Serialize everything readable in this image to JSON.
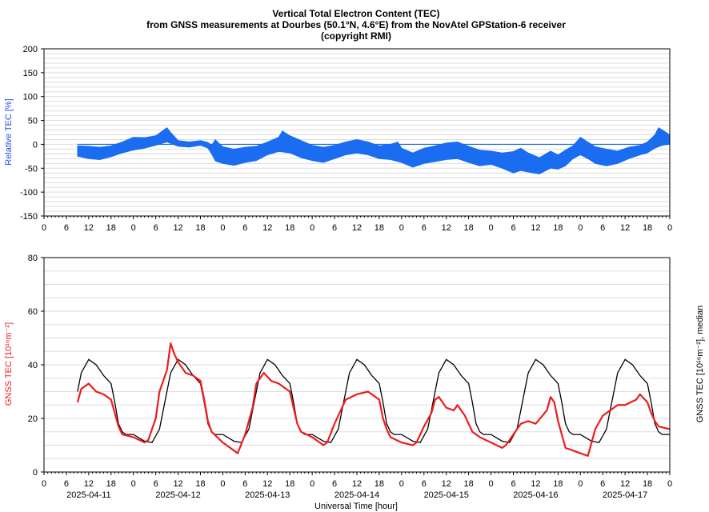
{
  "title_lines": [
    "Vertical Total Electron Content (TEC)",
    "from GNSS measurements at Dourbes (50.1°N, 4.6°E) from the NovAtel GPStation-6 receiver",
    "(copyright RMI)"
  ],
  "xlabel": "Universal Time [hour]",
  "colors": {
    "relative": "#1a6cf0",
    "tec": "#ee1c1c",
    "median": "#000000",
    "grid": "#dddddd",
    "axis": "#000000"
  },
  "chart_data": [
    {
      "type": "area",
      "name": "relative-tec",
      "ylabel": "Relative TEC [%]",
      "ylim": [
        -150,
        200
      ],
      "yticks": [
        -150,
        -100,
        -50,
        0,
        50,
        100,
        150,
        200
      ],
      "x_hour_labels": [
        "0",
        "6",
        "12",
        "18",
        "0",
        "6",
        "12",
        "18",
        "0",
        "6",
        "12",
        "18",
        "0",
        "6",
        "12",
        "18",
        "0",
        "6",
        "12",
        "18",
        "0",
        "6",
        "12",
        "18",
        "0",
        "6",
        "12",
        "18",
        "0"
      ],
      "x_range_hours": [
        0,
        168
      ],
      "start_hour": 9,
      "upper": [
        [
          9,
          -3
        ],
        [
          12,
          -4
        ],
        [
          15,
          -6
        ],
        [
          18,
          -3
        ],
        [
          21,
          5
        ],
        [
          24,
          15
        ],
        [
          27,
          14
        ],
        [
          30,
          18
        ],
        [
          33,
          35
        ],
        [
          34,
          25
        ],
        [
          36,
          8
        ],
        [
          39,
          5
        ],
        [
          42,
          8
        ],
        [
          44,
          4
        ],
        [
          45,
          -2
        ],
        [
          46,
          10
        ],
        [
          47,
          2
        ],
        [
          48,
          -5
        ],
        [
          51,
          -10
        ],
        [
          54,
          -6
        ],
        [
          57,
          -4
        ],
        [
          60,
          5
        ],
        [
          63,
          15
        ],
        [
          64,
          28
        ],
        [
          66,
          18
        ],
        [
          69,
          8
        ],
        [
          72,
          -2
        ],
        [
          75,
          -6
        ],
        [
          78,
          -2
        ],
        [
          81,
          5
        ],
        [
          84,
          10
        ],
        [
          87,
          5
        ],
        [
          90,
          -3
        ],
        [
          93,
          0
        ],
        [
          95,
          5
        ],
        [
          96,
          -8
        ],
        [
          99,
          -18
        ],
        [
          102,
          -8
        ],
        [
          105,
          -3
        ],
        [
          108,
          3
        ],
        [
          111,
          5
        ],
        [
          114,
          -4
        ],
        [
          117,
          -12
        ],
        [
          120,
          -14
        ],
        [
          123,
          -18
        ],
        [
          126,
          -15
        ],
        [
          128,
          -8
        ],
        [
          130,
          -18
        ],
        [
          133,
          -28
        ],
        [
          136,
          -14
        ],
        [
          138,
          -22
        ],
        [
          140,
          -12
        ],
        [
          142,
          -3
        ],
        [
          144,
          15
        ],
        [
          146,
          5
        ],
        [
          148,
          -5
        ],
        [
          151,
          -10
        ],
        [
          154,
          -14
        ],
        [
          157,
          -6
        ],
        [
          160,
          -2
        ],
        [
          162,
          5
        ],
        [
          164,
          20
        ],
        [
          165,
          35
        ],
        [
          166,
          30
        ],
        [
          168,
          20
        ]
      ],
      "lower": [
        [
          9,
          -25
        ],
        [
          12,
          -30
        ],
        [
          15,
          -32
        ],
        [
          18,
          -26
        ],
        [
          21,
          -18
        ],
        [
          24,
          -12
        ],
        [
          27,
          -8
        ],
        [
          30,
          -2
        ],
        [
          33,
          5
        ],
        [
          36,
          -4
        ],
        [
          39,
          -6
        ],
        [
          42,
          -2
        ],
        [
          44,
          -8
        ],
        [
          45,
          -20
        ],
        [
          46,
          -35
        ],
        [
          48,
          -40
        ],
        [
          51,
          -44
        ],
        [
          54,
          -38
        ],
        [
          57,
          -34
        ],
        [
          60,
          -22
        ],
        [
          63,
          -15
        ],
        [
          66,
          -18
        ],
        [
          69,
          -28
        ],
        [
          72,
          -34
        ],
        [
          75,
          -38
        ],
        [
          78,
          -30
        ],
        [
          81,
          -22
        ],
        [
          84,
          -18
        ],
        [
          87,
          -22
        ],
        [
          90,
          -30
        ],
        [
          93,
          -32
        ],
        [
          96,
          -38
        ],
        [
          99,
          -48
        ],
        [
          102,
          -40
        ],
        [
          105,
          -36
        ],
        [
          108,
          -32
        ],
        [
          111,
          -30
        ],
        [
          114,
          -38
        ],
        [
          117,
          -45
        ],
        [
          120,
          -42
        ],
        [
          123,
          -50
        ],
        [
          126,
          -60
        ],
        [
          128,
          -55
        ],
        [
          130,
          -58
        ],
        [
          133,
          -62
        ],
        [
          136,
          -50
        ],
        [
          138,
          -52
        ],
        [
          140,
          -45
        ],
        [
          142,
          -30
        ],
        [
          144,
          -22
        ],
        [
          146,
          -30
        ],
        [
          148,
          -40
        ],
        [
          151,
          -45
        ],
        [
          154,
          -40
        ],
        [
          157,
          -30
        ],
        [
          160,
          -22
        ],
        [
          162,
          -18
        ],
        [
          164,
          -8
        ],
        [
          166,
          -2
        ],
        [
          168,
          0
        ]
      ]
    },
    {
      "type": "line",
      "name": "gnss-tec",
      "ylabel": "GNSS TEC [10¹⁶m⁻²]",
      "y2label": "GNSS TEC [10¹⁶m⁻²], median",
      "ylim": [
        0,
        80
      ],
      "yticks": [
        0,
        20,
        40,
        60,
        80
      ],
      "x_range_hours": [
        0,
        168
      ],
      "x_hour_labels": [
        "0",
        "6",
        "12",
        "18",
        "0",
        "6",
        "12",
        "18",
        "0",
        "6",
        "12",
        "18",
        "0",
        "6",
        "12",
        "18",
        "0",
        "6",
        "12",
        "18",
        "0",
        "6",
        "12",
        "18",
        "0",
        "6",
        "12",
        "18",
        "0"
      ],
      "dates": [
        "2025-04-11",
        "2025-04-12",
        "2025-04-13",
        "2025-04-14",
        "2025-04-15",
        "2025-04-16",
        "2025-04-17"
      ],
      "median_daily": [
        [
          0,
          14
        ],
        [
          3,
          11.5
        ],
        [
          5,
          11
        ],
        [
          7,
          16
        ],
        [
          9,
          30
        ],
        [
          10,
          37
        ],
        [
          12,
          42
        ],
        [
          14,
          40
        ],
        [
          16,
          36
        ],
        [
          18,
          33
        ],
        [
          19,
          26
        ],
        [
          20,
          18
        ],
        [
          21,
          15
        ],
        [
          22,
          14
        ],
        [
          24,
          14
        ]
      ],
      "series": [
        {
          "name": "measured",
          "points": [
            [
              9,
              26
            ],
            [
              10,
              31
            ],
            [
              12,
              33
            ],
            [
              14,
              30
            ],
            [
              16,
              29
            ],
            [
              18,
              27
            ],
            [
              19,
              22
            ],
            [
              20,
              17
            ],
            [
              21,
              14
            ],
            [
              24,
              13
            ],
            [
              27,
              11
            ],
            [
              28,
              12
            ],
            [
              30,
              20
            ],
            [
              31,
              30
            ],
            [
              33,
              38
            ],
            [
              34,
              48
            ],
            [
              35,
              44
            ],
            [
              36,
              41
            ],
            [
              38,
              37
            ],
            [
              40,
              36
            ],
            [
              42,
              34
            ],
            [
              43,
              27
            ],
            [
              44,
              19
            ],
            [
              45,
              15
            ],
            [
              48,
              11
            ],
            [
              51,
              8
            ],
            [
              52,
              7
            ],
            [
              54,
              14
            ],
            [
              56,
              24
            ],
            [
              57,
              33
            ],
            [
              59,
              37
            ],
            [
              61,
              34
            ],
            [
              63,
              33
            ],
            [
              66,
              30
            ],
            [
              67,
              24
            ],
            [
              68,
              18
            ],
            [
              69,
              15
            ],
            [
              72,
              13
            ],
            [
              75,
              10
            ],
            [
              76,
              11
            ],
            [
              78,
              18
            ],
            [
              80,
              24
            ],
            [
              81,
              27
            ],
            [
              84,
              29
            ],
            [
              87,
              30
            ],
            [
              90,
              27
            ],
            [
              91,
              20
            ],
            [
              92,
              16
            ],
            [
              93,
              13
            ],
            [
              96,
              11
            ],
            [
              99,
              10
            ],
            [
              100,
              11
            ],
            [
              102,
              17
            ],
            [
              104,
              22
            ],
            [
              105,
              27
            ],
            [
              106,
              28
            ],
            [
              108,
              24
            ],
            [
              110,
              23
            ],
            [
              111,
              25
            ],
            [
              113,
              21
            ],
            [
              114,
              18
            ],
            [
              115,
              15
            ],
            [
              117,
              13
            ],
            [
              120,
              11
            ],
            [
              123,
              9
            ],
            [
              124,
              10
            ],
            [
              126,
              14
            ],
            [
              128,
              18
            ],
            [
              130,
              19
            ],
            [
              132,
              18
            ],
            [
              135,
              23
            ],
            [
              136,
              28
            ],
            [
              137,
              26
            ],
            [
              138,
              19
            ],
            [
              139,
              14
            ],
            [
              140,
              9
            ],
            [
              142,
              8
            ],
            [
              144,
              7
            ],
            [
              146,
              6
            ],
            [
              147,
              11
            ],
            [
              148,
              16
            ],
            [
              150,
              21
            ],
            [
              152,
              23
            ],
            [
              154,
              25
            ],
            [
              156,
              25
            ],
            [
              159,
              27
            ],
            [
              160,
              29
            ],
            [
              162,
              26
            ],
            [
              163,
              22
            ],
            [
              164,
              19
            ],
            [
              165,
              17
            ],
            [
              168,
              16
            ]
          ]
        }
      ]
    }
  ]
}
